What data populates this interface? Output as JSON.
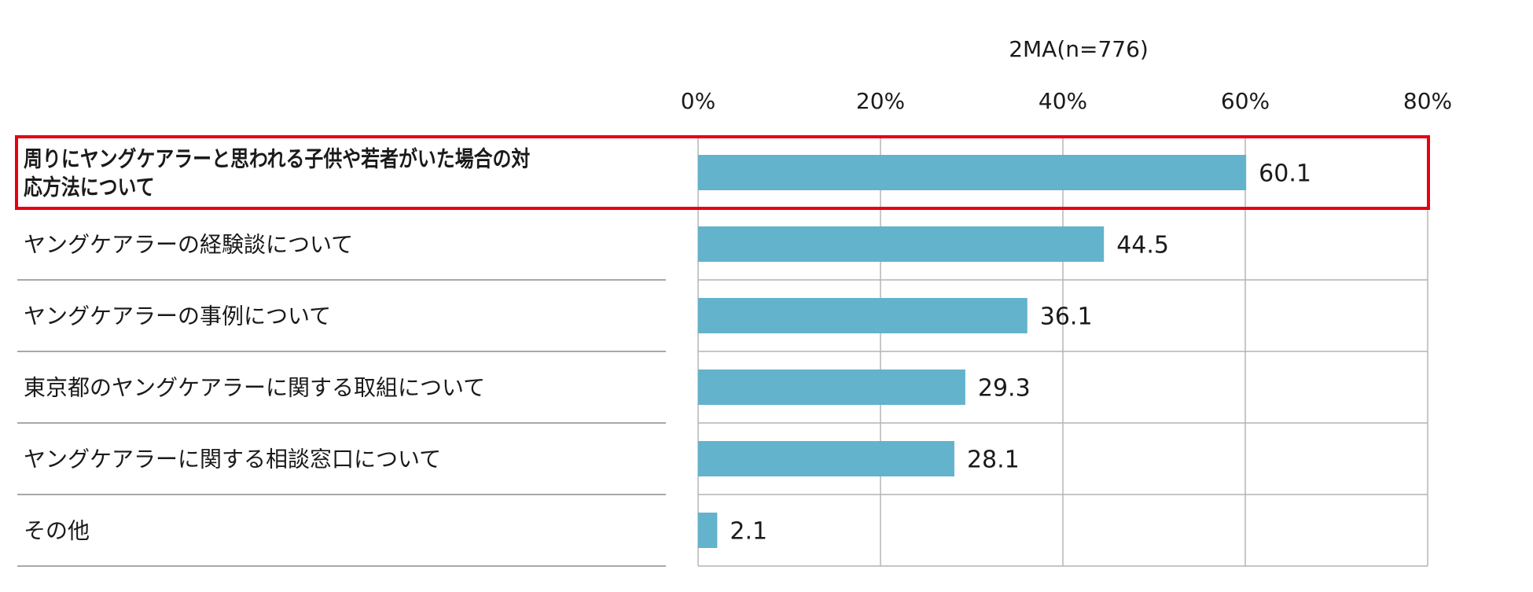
{
  "chart_data": {
    "type": "bar",
    "orientation": "horizontal",
    "subtitle": "2MA(n=776)",
    "categories": [
      "周りにヤングケアラーと思われる子供や若者がいた場合の対応方法について",
      "ヤングケアラーの経験談について",
      "ヤングケアラーの事例について",
      "東京都のヤングケアラーに関する取組について",
      "ヤングケアラーに関する相談窓口について",
      "その他"
    ],
    "category_lines": [
      [
        "周りにヤングケアラーと思われる子供や若者がいた場合の対",
        "応方法について"
      ],
      [
        "ヤングケアラーの経験談について"
      ],
      [
        "ヤングケアラーの事例について"
      ],
      [
        "東京都のヤングケアラーに関する取組について"
      ],
      [
        "ヤングケアラーに関する相談窓口について"
      ],
      [
        "その他"
      ]
    ],
    "values": [
      60.1,
      44.5,
      36.1,
      29.3,
      28.1,
      2.1
    ],
    "value_labels": [
      "60.1",
      "44.5",
      "36.1",
      "29.3",
      "28.1",
      "2.1"
    ],
    "xlim": [
      0,
      80
    ],
    "xticks": [
      0,
      20,
      40,
      60,
      80
    ],
    "xtick_labels": [
      "0%",
      "20%",
      "40%",
      "60%",
      "80%"
    ],
    "grid": true,
    "bar_color": "#62b3cb",
    "highlight_index": 0,
    "highlight_color": "#e60012",
    "highlight_bold": true
  }
}
